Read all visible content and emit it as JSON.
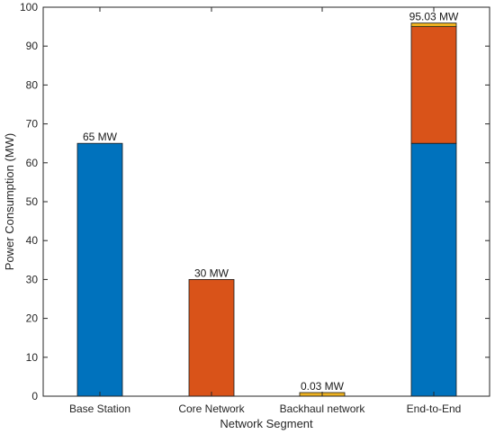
{
  "chart_data": {
    "type": "bar",
    "stacked": true,
    "title": "",
    "xlabel": "Network Segment",
    "ylabel": "Power Consumption (MW)",
    "ylim": [
      0,
      100
    ],
    "yticks": [
      0,
      10,
      20,
      30,
      40,
      50,
      60,
      70,
      80,
      90,
      100
    ],
    "grid": false,
    "categories": [
      "Base Station",
      "Core Network",
      "Backhaul network",
      "End-to-End"
    ],
    "series": [
      {
        "color": "#0072BD",
        "values": [
          65,
          0,
          0,
          65
        ]
      },
      {
        "color": "#D95319",
        "values": [
          0,
          30,
          0,
          30
        ]
      },
      {
        "color": "#EDB120",
        "values": [
          0,
          0,
          0.03,
          0.03
        ]
      }
    ],
    "data_labels": [
      "65 MW",
      "30 MW",
      "0.03 MW",
      "95.03 MW"
    ]
  }
}
